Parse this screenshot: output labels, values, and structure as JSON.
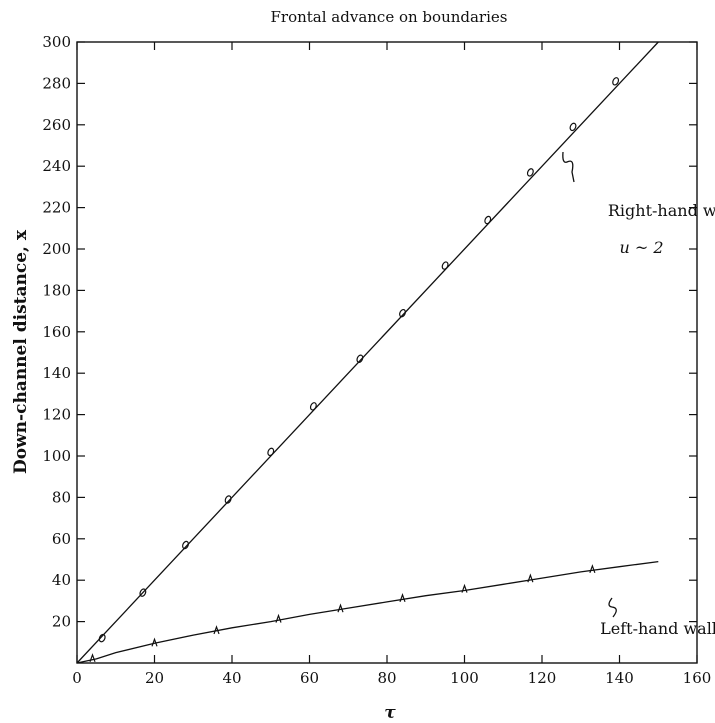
{
  "chart_data": {
    "type": "line",
    "title": "Frontal advance on boundaries",
    "xlabel": "τ",
    "ylabel": "Down-channel distance, x",
    "xlim": [
      0,
      160
    ],
    "ylim": [
      0,
      300
    ],
    "x_ticks": [
      0,
      20,
      40,
      60,
      80,
      100,
      120,
      140,
      160
    ],
    "y_ticks": [
      20,
      40,
      60,
      80,
      100,
      120,
      140,
      160,
      180,
      200,
      220,
      240,
      260,
      280,
      300
    ],
    "grid": false,
    "series": [
      {
        "name": "Right-hand wall",
        "line_x": [
          0,
          150
        ],
        "line_y": [
          0,
          300
        ],
        "points": [
          {
            "x": 6.5,
            "y": 12
          },
          {
            "x": 17,
            "y": 34
          },
          {
            "x": 28,
            "y": 57
          },
          {
            "x": 39,
            "y": 79
          },
          {
            "x": 50,
            "y": 102
          },
          {
            "x": 61,
            "y": 124
          },
          {
            "x": 73,
            "y": 147
          },
          {
            "x": 84,
            "y": 169
          },
          {
            "x": 95,
            "y": 192
          },
          {
            "x": 106,
            "y": 214
          },
          {
            "x": 117,
            "y": 237
          },
          {
            "x": 128,
            "y": 259
          },
          {
            "x": 139,
            "y": 281
          }
        ]
      },
      {
        "name": "Left-hand wall",
        "line_x": [
          0,
          5,
          10,
          20,
          30,
          40,
          50,
          60,
          70,
          80,
          90,
          100,
          110,
          120,
          130,
          140,
          150
        ],
        "line_y": [
          0,
          2,
          5,
          9.5,
          13.5,
          17,
          20,
          23.5,
          26.5,
          29.5,
          32.5,
          35,
          38,
          41,
          44,
          46.5,
          49
        ],
        "points": [
          {
            "x": 4,
            "y": 2
          },
          {
            "x": 20,
            "y": 9.5
          },
          {
            "x": 36,
            "y": 15.5
          },
          {
            "x": 52,
            "y": 21
          },
          {
            "x": 68,
            "y": 26
          },
          {
            "x": 84,
            "y": 31
          },
          {
            "x": 100,
            "y": 35.5
          },
          {
            "x": 117,
            "y": 40.5
          },
          {
            "x": 133,
            "y": 45
          }
        ]
      }
    ],
    "annotations": [
      {
        "text": "Right-hand wall",
        "x": 137,
        "y": 216
      },
      {
        "text": "u ~ 2",
        "x": 140,
        "y": 198
      },
      {
        "text": "Left-hand wall",
        "x": 135,
        "y": 14
      }
    ]
  }
}
